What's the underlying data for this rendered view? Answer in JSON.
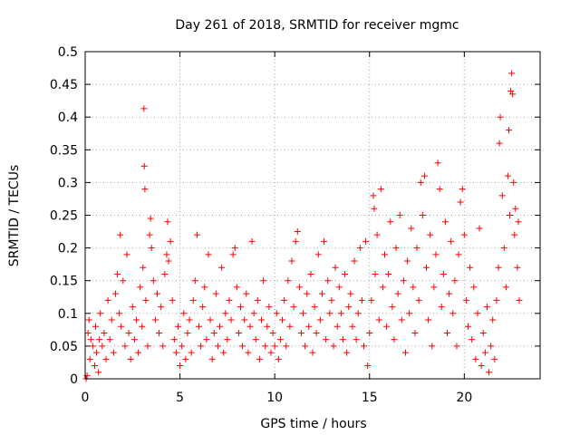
{
  "chart_data": {
    "type": "scatter",
    "title": "Day 261 of 2018, SRMTID for receiver mgmc",
    "xlabel": "GPS time / hours",
    "ylabel": "SRMTID / TECUs",
    "xlim": [
      0,
      24
    ],
    "ylim": [
      0,
      0.5
    ],
    "x_ticks": [
      0,
      5,
      10,
      15,
      20
    ],
    "y_ticks": [
      0,
      0.05,
      0.1,
      0.15,
      0.2,
      0.25,
      0.3,
      0.35,
      0.4,
      0.45,
      0.5
    ],
    "x_tick_labels": [
      "0",
      "5",
      "10",
      "15",
      "20"
    ],
    "y_tick_labels": [
      "0",
      "0.05",
      "0.1",
      "0.15",
      "0.2",
      "0.25",
      "0.3",
      "0.35",
      "0.4",
      "0.45",
      "0.5"
    ],
    "grid": true,
    "marker": "+",
    "color": "#ff0000",
    "series": [
      {
        "name": "SRMTID",
        "points": [
          [
            0.05,
            0.0
          ],
          [
            0.1,
            0.005
          ],
          [
            0.15,
            0.07
          ],
          [
            0.2,
            0.09
          ],
          [
            0.25,
            0.03
          ],
          [
            0.3,
            0.06
          ],
          [
            0.4,
            0.05
          ],
          [
            0.5,
            0.02
          ],
          [
            0.55,
            0.08
          ],
          [
            0.6,
            0.04
          ],
          [
            0.7,
            0.01
          ],
          [
            0.75,
            0.06
          ],
          [
            0.8,
            0.1
          ],
          [
            0.9,
            0.05
          ],
          [
            1.0,
            0.07
          ],
          [
            1.1,
            0.03
          ],
          [
            1.2,
            0.12
          ],
          [
            1.3,
            0.06
          ],
          [
            1.4,
            0.09
          ],
          [
            1.5,
            0.04
          ],
          [
            1.6,
            0.13
          ],
          [
            1.7,
            0.16
          ],
          [
            1.8,
            0.1
          ],
          [
            1.85,
            0.22
          ],
          [
            1.9,
            0.08
          ],
          [
            2.0,
            0.15
          ],
          [
            2.1,
            0.05
          ],
          [
            2.2,
            0.19
          ],
          [
            2.3,
            0.07
          ],
          [
            2.4,
            0.03
          ],
          [
            2.5,
            0.11
          ],
          [
            2.6,
            0.06
          ],
          [
            2.7,
            0.09
          ],
          [
            2.8,
            0.04
          ],
          [
            2.9,
            0.14
          ],
          [
            3.0,
            0.08
          ],
          [
            3.05,
            0.17
          ],
          [
            3.1,
            0.413
          ],
          [
            3.12,
            0.325
          ],
          [
            3.15,
            0.29
          ],
          [
            3.2,
            0.12
          ],
          [
            3.3,
            0.05
          ],
          [
            3.4,
            0.22
          ],
          [
            3.45,
            0.245
          ],
          [
            3.5,
            0.2
          ],
          [
            3.6,
            0.15
          ],
          [
            3.7,
            0.09
          ],
          [
            3.8,
            0.13
          ],
          [
            3.9,
            0.07
          ],
          [
            4.0,
            0.11
          ],
          [
            4.1,
            0.05
          ],
          [
            4.2,
            0.16
          ],
          [
            4.3,
            0.19
          ],
          [
            4.35,
            0.24
          ],
          [
            4.4,
            0.18
          ],
          [
            4.5,
            0.21
          ],
          [
            4.6,
            0.12
          ],
          [
            4.7,
            0.06
          ],
          [
            4.8,
            0.04
          ],
          [
            4.9,
            0.08
          ],
          [
            5.0,
            0.02
          ],
          [
            5.1,
            0.05
          ],
          [
            5.2,
            0.1
          ],
          [
            5.3,
            0.03
          ],
          [
            5.4,
            0.07
          ],
          [
            5.5,
            0.09
          ],
          [
            5.6,
            0.04
          ],
          [
            5.7,
            0.12
          ],
          [
            5.8,
            0.15
          ],
          [
            5.9,
            0.22
          ],
          [
            6.0,
            0.08
          ],
          [
            6.1,
            0.05
          ],
          [
            6.2,
            0.11
          ],
          [
            6.3,
            0.14
          ],
          [
            6.4,
            0.06
          ],
          [
            6.5,
            0.19
          ],
          [
            6.6,
            0.09
          ],
          [
            6.7,
            0.03
          ],
          [
            6.8,
            0.07
          ],
          [
            6.9,
            0.13
          ],
          [
            7.0,
            0.05
          ],
          [
            7.1,
            0.08
          ],
          [
            7.2,
            0.17
          ],
          [
            7.3,
            0.04
          ],
          [
            7.4,
            0.1
          ],
          [
            7.5,
            0.06
          ],
          [
            7.6,
            0.12
          ],
          [
            7.7,
            0.09
          ],
          [
            7.8,
            0.19
          ],
          [
            7.9,
            0.2
          ],
          [
            8.0,
            0.14
          ],
          [
            8.1,
            0.07
          ],
          [
            8.2,
            0.11
          ],
          [
            8.3,
            0.05
          ],
          [
            8.4,
            0.09
          ],
          [
            8.5,
            0.13
          ],
          [
            8.6,
            0.04
          ],
          [
            8.7,
            0.08
          ],
          [
            8.8,
            0.21
          ],
          [
            8.9,
            0.1
          ],
          [
            9.0,
            0.06
          ],
          [
            9.1,
            0.12
          ],
          [
            9.2,
            0.03
          ],
          [
            9.3,
            0.09
          ],
          [
            9.4,
            0.15
          ],
          [
            9.5,
            0.05
          ],
          [
            9.6,
            0.08
          ],
          [
            9.7,
            0.11
          ],
          [
            9.8,
            0.04
          ],
          [
            9.9,
            0.07
          ],
          [
            10.0,
            0.05
          ],
          [
            10.1,
            0.1
          ],
          [
            10.2,
            0.03
          ],
          [
            10.3,
            0.06
          ],
          [
            10.4,
            0.09
          ],
          [
            10.5,
            0.12
          ],
          [
            10.6,
            0.05
          ],
          [
            10.7,
            0.15
          ],
          [
            10.8,
            0.08
          ],
          [
            10.9,
            0.18
          ],
          [
            11.0,
            0.11
          ],
          [
            11.1,
            0.21
          ],
          [
            11.2,
            0.225
          ],
          [
            11.3,
            0.14
          ],
          [
            11.4,
            0.07
          ],
          [
            11.5,
            0.1
          ],
          [
            11.6,
            0.05
          ],
          [
            11.7,
            0.13
          ],
          [
            11.8,
            0.08
          ],
          [
            11.9,
            0.16
          ],
          [
            12.0,
            0.04
          ],
          [
            12.1,
            0.11
          ],
          [
            12.2,
            0.07
          ],
          [
            12.3,
            0.19
          ],
          [
            12.4,
            0.09
          ],
          [
            12.5,
            0.13
          ],
          [
            12.6,
            0.21
          ],
          [
            12.7,
            0.06
          ],
          [
            12.8,
            0.15
          ],
          [
            12.9,
            0.1
          ],
          [
            13.0,
            0.12
          ],
          [
            13.1,
            0.05
          ],
          [
            13.2,
            0.17
          ],
          [
            13.3,
            0.08
          ],
          [
            13.4,
            0.14
          ],
          [
            13.5,
            0.1
          ],
          [
            13.6,
            0.06
          ],
          [
            13.7,
            0.16
          ],
          [
            13.8,
            0.04
          ],
          [
            13.9,
            0.11
          ],
          [
            14.0,
            0.13
          ],
          [
            14.1,
            0.08
          ],
          [
            14.2,
            0.18
          ],
          [
            14.3,
            0.06
          ],
          [
            14.4,
            0.1
          ],
          [
            14.5,
            0.2
          ],
          [
            14.6,
            0.12
          ],
          [
            14.7,
            0.05
          ],
          [
            14.8,
            0.21
          ],
          [
            14.9,
            0.02
          ],
          [
            15.0,
            0.07
          ],
          [
            15.1,
            0.12
          ],
          [
            15.2,
            0.28
          ],
          [
            15.25,
            0.26
          ],
          [
            15.3,
            0.16
          ],
          [
            15.4,
            0.22
          ],
          [
            15.5,
            0.09
          ],
          [
            15.6,
            0.29
          ],
          [
            15.7,
            0.14
          ],
          [
            15.8,
            0.19
          ],
          [
            15.9,
            0.08
          ],
          [
            16.0,
            0.16
          ],
          [
            16.1,
            0.24
          ],
          [
            16.2,
            0.11
          ],
          [
            16.3,
            0.06
          ],
          [
            16.4,
            0.2
          ],
          [
            16.5,
            0.13
          ],
          [
            16.6,
            0.25
          ],
          [
            16.7,
            0.09
          ],
          [
            16.8,
            0.15
          ],
          [
            16.9,
            0.04
          ],
          [
            17.0,
            0.18
          ],
          [
            17.1,
            0.1
          ],
          [
            17.2,
            0.23
          ],
          [
            17.3,
            0.14
          ],
          [
            17.4,
            0.07
          ],
          [
            17.5,
            0.2
          ],
          [
            17.6,
            0.12
          ],
          [
            17.7,
            0.3
          ],
          [
            17.8,
            0.25
          ],
          [
            17.9,
            0.31
          ],
          [
            18.0,
            0.17
          ],
          [
            18.1,
            0.09
          ],
          [
            18.2,
            0.22
          ],
          [
            18.3,
            0.05
          ],
          [
            18.4,
            0.14
          ],
          [
            18.5,
            0.19
          ],
          [
            18.6,
            0.33
          ],
          [
            18.7,
            0.29
          ],
          [
            18.8,
            0.11
          ],
          [
            18.9,
            0.16
          ],
          [
            19.0,
            0.24
          ],
          [
            19.1,
            0.07
          ],
          [
            19.2,
            0.13
          ],
          [
            19.3,
            0.21
          ],
          [
            19.4,
            0.1
          ],
          [
            19.5,
            0.15
          ],
          [
            19.6,
            0.05
          ],
          [
            19.7,
            0.19
          ],
          [
            19.8,
            0.27
          ],
          [
            19.9,
            0.29
          ],
          [
            20.0,
            0.22
          ],
          [
            20.1,
            0.12
          ],
          [
            20.2,
            0.08
          ],
          [
            20.3,
            0.17
          ],
          [
            20.4,
            0.06
          ],
          [
            20.5,
            0.14
          ],
          [
            20.6,
            0.03
          ],
          [
            20.7,
            0.1
          ],
          [
            20.8,
            0.23
          ],
          [
            20.9,
            0.02
          ],
          [
            21.0,
            0.07
          ],
          [
            21.1,
            0.04
          ],
          [
            21.2,
            0.11
          ],
          [
            21.3,
            0.01
          ],
          [
            21.4,
            0.05
          ],
          [
            21.5,
            0.09
          ],
          [
            21.6,
            0.03
          ],
          [
            21.7,
            0.12
          ],
          [
            21.8,
            0.17
          ],
          [
            21.85,
            0.36
          ],
          [
            21.9,
            0.4
          ],
          [
            22.0,
            0.28
          ],
          [
            22.1,
            0.2
          ],
          [
            22.2,
            0.14
          ],
          [
            22.3,
            0.31
          ],
          [
            22.35,
            0.38
          ],
          [
            22.4,
            0.25
          ],
          [
            22.45,
            0.44
          ],
          [
            22.5,
            0.467
          ],
          [
            22.55,
            0.435
          ],
          [
            22.6,
            0.3
          ],
          [
            22.65,
            0.22
          ],
          [
            22.7,
            0.26
          ],
          [
            22.8,
            0.17
          ],
          [
            22.85,
            0.24
          ],
          [
            22.9,
            0.12
          ]
        ]
      }
    ]
  }
}
